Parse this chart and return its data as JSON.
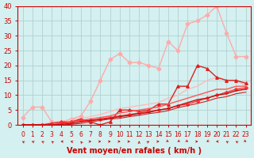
{
  "xlabel": "Vent moyen/en rafales ( km/h )",
  "ylabel": "",
  "bg_color": "#d4f0f0",
  "grid_color": "#aacccc",
  "xlim": [
    -0.5,
    23.5
  ],
  "ylim": [
    0,
    40
  ],
  "yticks": [
    0,
    5,
    10,
    15,
    20,
    25,
    30,
    35,
    40
  ],
  "xticks": [
    0,
    1,
    2,
    3,
    4,
    5,
    6,
    7,
    8,
    9,
    10,
    11,
    12,
    13,
    14,
    15,
    16,
    17,
    18,
    19,
    20,
    21,
    22,
    23
  ],
  "series": [
    {
      "x": [
        0,
        1,
        2,
        3,
        4,
        5,
        6,
        7,
        8,
        9,
        10,
        11,
        12,
        13,
        14,
        15,
        16,
        17,
        18,
        19,
        20,
        21,
        22,
        23
      ],
      "y": [
        2.5,
        6,
        6,
        1,
        1,
        2,
        3,
        8,
        15,
        22,
        24,
        21,
        21,
        20,
        19,
        28,
        25,
        34,
        35,
        37,
        40,
        31,
        23,
        23
      ],
      "color": "#ffaaaa",
      "lw": 1.0,
      "marker": "D",
      "ms": 2.5,
      "linestyle": "-"
    },
    {
      "x": [
        0,
        1,
        2,
        3,
        4,
        5,
        6,
        7,
        8,
        9,
        10,
        11,
        12,
        13,
        14,
        15,
        16,
        17,
        18,
        19,
        20,
        21,
        22,
        23
      ],
      "y": [
        0,
        0,
        0.3,
        0.8,
        1.2,
        1.8,
        2.2,
        2.8,
        3.5,
        4.5,
        5.5,
        6,
        6.5,
        7,
        7.5,
        9,
        10,
        12,
        13,
        15,
        16,
        15,
        15,
        13
      ],
      "color": "#ffbbbb",
      "lw": 1.0,
      "marker": null,
      "ms": 0,
      "linestyle": "-"
    },
    {
      "x": [
        0,
        1,
        2,
        3,
        4,
        5,
        6,
        7,
        8,
        9,
        10,
        11,
        12,
        13,
        14,
        15,
        16,
        17,
        18,
        19,
        20,
        21,
        22,
        23
      ],
      "y": [
        0,
        0,
        0,
        0.5,
        1,
        1,
        2,
        1,
        0,
        1,
        5,
        5,
        4.5,
        5,
        7,
        7,
        13,
        13,
        20,
        19,
        16,
        15,
        15,
        14
      ],
      "color": "#dd2222",
      "lw": 1.0,
      "marker": "^",
      "ms": 2.5,
      "linestyle": "-"
    },
    {
      "x": [
        0,
        1,
        2,
        3,
        4,
        5,
        6,
        7,
        8,
        9,
        10,
        11,
        12,
        13,
        14,
        15,
        16,
        17,
        18,
        19,
        20,
        21,
        22,
        23
      ],
      "y": [
        0,
        0,
        0,
        0,
        0.5,
        1,
        1.5,
        2,
        2.5,
        3,
        4,
        4.5,
        5,
        5.5,
        6,
        7,
        8,
        9,
        10,
        11,
        12,
        12,
        13,
        13
      ],
      "color": "#ff5555",
      "lw": 1.0,
      "marker": null,
      "ms": 0,
      "linestyle": "-"
    },
    {
      "x": [
        0,
        1,
        2,
        3,
        4,
        5,
        6,
        7,
        8,
        9,
        10,
        11,
        12,
        13,
        14,
        15,
        16,
        17,
        18,
        19,
        20,
        21,
        22,
        23
      ],
      "y": [
        0,
        0,
        0,
        0,
        0.5,
        1,
        1.5,
        1.5,
        2,
        2.5,
        3,
        3.5,
        4,
        4.5,
        5,
        5.5,
        6.5,
        7,
        8,
        9,
        10,
        11,
        12,
        12.5
      ],
      "color": "#ff3333",
      "lw": 1.0,
      "marker": "D",
      "ms": 2.0,
      "linestyle": "-"
    },
    {
      "x": [
        0,
        1,
        2,
        3,
        4,
        5,
        6,
        7,
        8,
        9,
        10,
        11,
        12,
        13,
        14,
        15,
        16,
        17,
        18,
        19,
        20,
        21,
        22,
        23
      ],
      "y": [
        0,
        0,
        0,
        0,
        0.2,
        0.5,
        1,
        1.5,
        1.8,
        2.2,
        2.8,
        3.2,
        3.8,
        4.2,
        5,
        5.5,
        6.5,
        7.5,
        8.5,
        9,
        10,
        10.5,
        11.5,
        12
      ],
      "color": "#bb1111",
      "lw": 1.0,
      "marker": null,
      "ms": 0,
      "linestyle": "-"
    },
    {
      "x": [
        0,
        1,
        2,
        3,
        4,
        5,
        6,
        7,
        8,
        9,
        10,
        11,
        12,
        13,
        14,
        15,
        16,
        17,
        18,
        19,
        20,
        21,
        22,
        23
      ],
      "y": [
        0,
        0,
        0,
        0,
        0,
        0.2,
        0.5,
        1,
        1.5,
        2,
        2.2,
        2.8,
        3.2,
        3.8,
        4.2,
        4.8,
        5.8,
        6.5,
        7.2,
        8,
        9,
        9.5,
        10.5,
        11
      ],
      "color": "#cc2222",
      "lw": 0.8,
      "marker": null,
      "ms": 0,
      "linestyle": "-"
    }
  ],
  "arrow_angles": [
    225,
    240,
    225,
    220,
    270,
    250,
    200,
    90,
    90,
    90,
    90,
    90,
    180,
    135,
    90,
    45,
    315,
    45,
    90,
    315,
    270,
    225,
    225,
    45
  ],
  "arrow_color": "#cc0000",
  "tick_fontsize": 5.5,
  "xlabel_fontsize": 7,
  "axis_color": "#cc0000"
}
